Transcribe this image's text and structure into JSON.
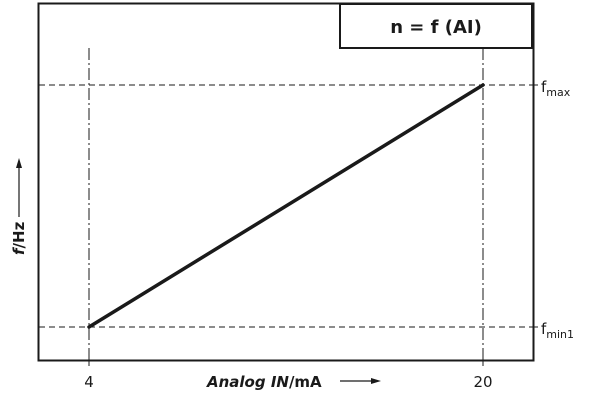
{
  "chart_data": {
    "type": "line",
    "title": "n = f (AI)",
    "xlabel": {
      "italic": "Analog IN",
      "rest": "/mA"
    },
    "ylabel": {
      "italic": "f",
      "rest": "/Hz"
    },
    "x_ticks": [
      "4",
      "20"
    ],
    "y_ticks": [
      {
        "base": "f",
        "sub": "max"
      },
      {
        "base": "f",
        "sub": "min1"
      }
    ],
    "series": [
      {
        "points": [
          {
            "x": 4,
            "y": "fmin1"
          },
          {
            "x": 20,
            "y": "fmax"
          }
        ]
      }
    ],
    "grid": "dashed reference lines at x=4, x=20, y=fmin1, y=fmax",
    "colors": {
      "line": "#1a1a1a",
      "frame": "#1a1a1a",
      "background": "#ffffff"
    }
  }
}
